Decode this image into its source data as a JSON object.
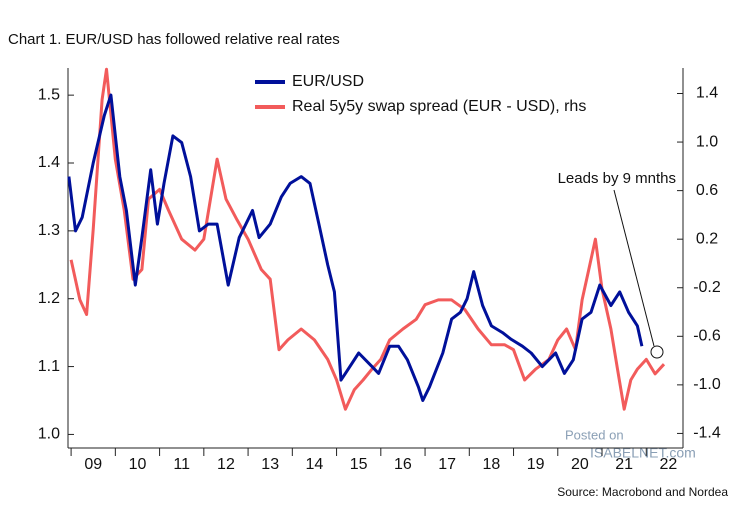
{
  "chart_data": {
    "type": "line",
    "title": "Chart 1. EUR/USD has followed relative real rates",
    "source": "Source: Macrobond and Nordea",
    "watermark": [
      "Posted on",
      "ISABELNET.com"
    ],
    "annotation": "Leads by 9 mnths",
    "xlim": [
      8.93,
      22.83
    ],
    "xticks": [
      {
        "value": 9,
        "label": "09"
      },
      {
        "value": 10,
        "label": "10"
      },
      {
        "value": 11,
        "label": "11"
      },
      {
        "value": 12,
        "label": "12"
      },
      {
        "value": 13,
        "label": "13"
      },
      {
        "value": 14,
        "label": "14"
      },
      {
        "value": 15,
        "label": "15"
      },
      {
        "value": 16,
        "label": "16"
      },
      {
        "value": 17,
        "label": "17"
      },
      {
        "value": 18,
        "label": "18"
      },
      {
        "value": 19,
        "label": "19"
      },
      {
        "value": 20,
        "label": "20"
      },
      {
        "value": 21,
        "label": "21"
      },
      {
        "value": 22,
        "label": "22"
      }
    ],
    "ylim": [
      0.98,
      1.54
    ],
    "yticks": [
      {
        "value": 1.0,
        "label": "1.0"
      },
      1.1,
      1.2,
      1.3,
      1.4,
      1.5
    ],
    "y2lim": [
      -1.52,
      1.61
    ],
    "y2ticks": [
      {
        "value": -1.4,
        "label": "-1.4"
      },
      {
        "value": -1.0,
        "label": "-1.0"
      },
      -0.6,
      -0.2,
      0.2,
      0.6,
      {
        "value": 1.0,
        "label": "1.0"
      },
      1.4
    ],
    "series": [
      {
        "name": "EUR/USD",
        "color": "#00109a",
        "x": [
          8.95,
          9.1,
          9.25,
          9.5,
          9.75,
          9.9,
          10.1,
          10.25,
          10.45,
          10.6,
          10.8,
          10.95,
          11.1,
          11.3,
          11.5,
          11.7,
          11.9,
          12.1,
          12.3,
          12.55,
          12.8,
          12.95,
          13.1,
          13.25,
          13.5,
          13.75,
          13.95,
          14.2,
          14.4,
          14.6,
          14.8,
          14.95,
          15.1,
          15.2,
          15.5,
          15.8,
          15.95,
          16.2,
          16.4,
          16.6,
          16.85,
          16.95,
          17.1,
          17.4,
          17.6,
          17.8,
          17.95,
          18.1,
          18.3,
          18.5,
          18.75,
          18.95,
          19.2,
          19.4,
          19.65,
          19.8,
          19.95,
          20.15,
          20.35,
          20.55,
          20.75,
          20.95,
          21.2,
          21.4,
          21.6,
          21.8,
          21.9
        ],
        "values": [
          1.38,
          1.3,
          1.32,
          1.4,
          1.47,
          1.5,
          1.38,
          1.33,
          1.22,
          1.29,
          1.39,
          1.31,
          1.37,
          1.44,
          1.43,
          1.38,
          1.3,
          1.31,
          1.31,
          1.22,
          1.29,
          1.31,
          1.33,
          1.29,
          1.31,
          1.35,
          1.37,
          1.38,
          1.37,
          1.31,
          1.25,
          1.21,
          1.08,
          1.09,
          1.12,
          1.1,
          1.09,
          1.13,
          1.13,
          1.11,
          1.07,
          1.05,
          1.07,
          1.12,
          1.17,
          1.18,
          1.2,
          1.24,
          1.19,
          1.16,
          1.15,
          1.14,
          1.13,
          1.12,
          1.1,
          1.11,
          1.12,
          1.09,
          1.11,
          1.17,
          1.18,
          1.22,
          1.19,
          1.21,
          1.18,
          1.16,
          1.13
        ]
      },
      {
        "name": "Real 5y5y swap spread (EUR - USD), rhs",
        "color": "#f25b5b",
        "axis": "y2",
        "x": [
          9.0,
          9.2,
          9.35,
          9.5,
          9.7,
          9.8,
          10.0,
          10.2,
          10.4,
          10.6,
          10.75,
          11.0,
          11.2,
          11.5,
          11.8,
          12.0,
          12.3,
          12.5,
          12.75,
          13.0,
          13.3,
          13.5,
          13.7,
          13.9,
          14.2,
          14.5,
          14.8,
          15.0,
          15.2,
          15.4,
          15.6,
          15.8,
          16.0,
          16.2,
          16.5,
          16.8,
          17.0,
          17.3,
          17.6,
          17.9,
          18.2,
          18.5,
          18.8,
          19.0,
          19.25,
          19.5,
          19.8,
          20.0,
          20.2,
          20.4,
          20.55,
          20.7,
          20.85,
          21.0,
          21.2,
          21.35,
          21.5,
          21.65,
          21.8,
          22.0,
          22.2,
          22.4
        ],
        "values": [
          0.03,
          -0.3,
          -0.42,
          0.28,
          1.35,
          1.6,
          0.86,
          0.44,
          -0.13,
          -0.05,
          0.53,
          0.61,
          0.44,
          0.2,
          0.11,
          0.2,
          0.86,
          0.53,
          0.36,
          0.2,
          -0.05,
          -0.13,
          -0.71,
          -0.63,
          -0.54,
          -0.63,
          -0.79,
          -0.96,
          -1.2,
          -1.04,
          -0.96,
          -0.87,
          -0.79,
          -0.63,
          -0.54,
          -0.46,
          -0.34,
          -0.3,
          -0.3,
          -0.38,
          -0.54,
          -0.67,
          -0.67,
          -0.71,
          -0.96,
          -0.87,
          -0.79,
          -0.63,
          -0.54,
          -0.71,
          -0.3,
          -0.05,
          0.2,
          -0.21,
          -0.54,
          -0.87,
          -1.2,
          -0.96,
          -0.87,
          -0.79,
          -0.91,
          -0.83
        ]
      }
    ]
  }
}
